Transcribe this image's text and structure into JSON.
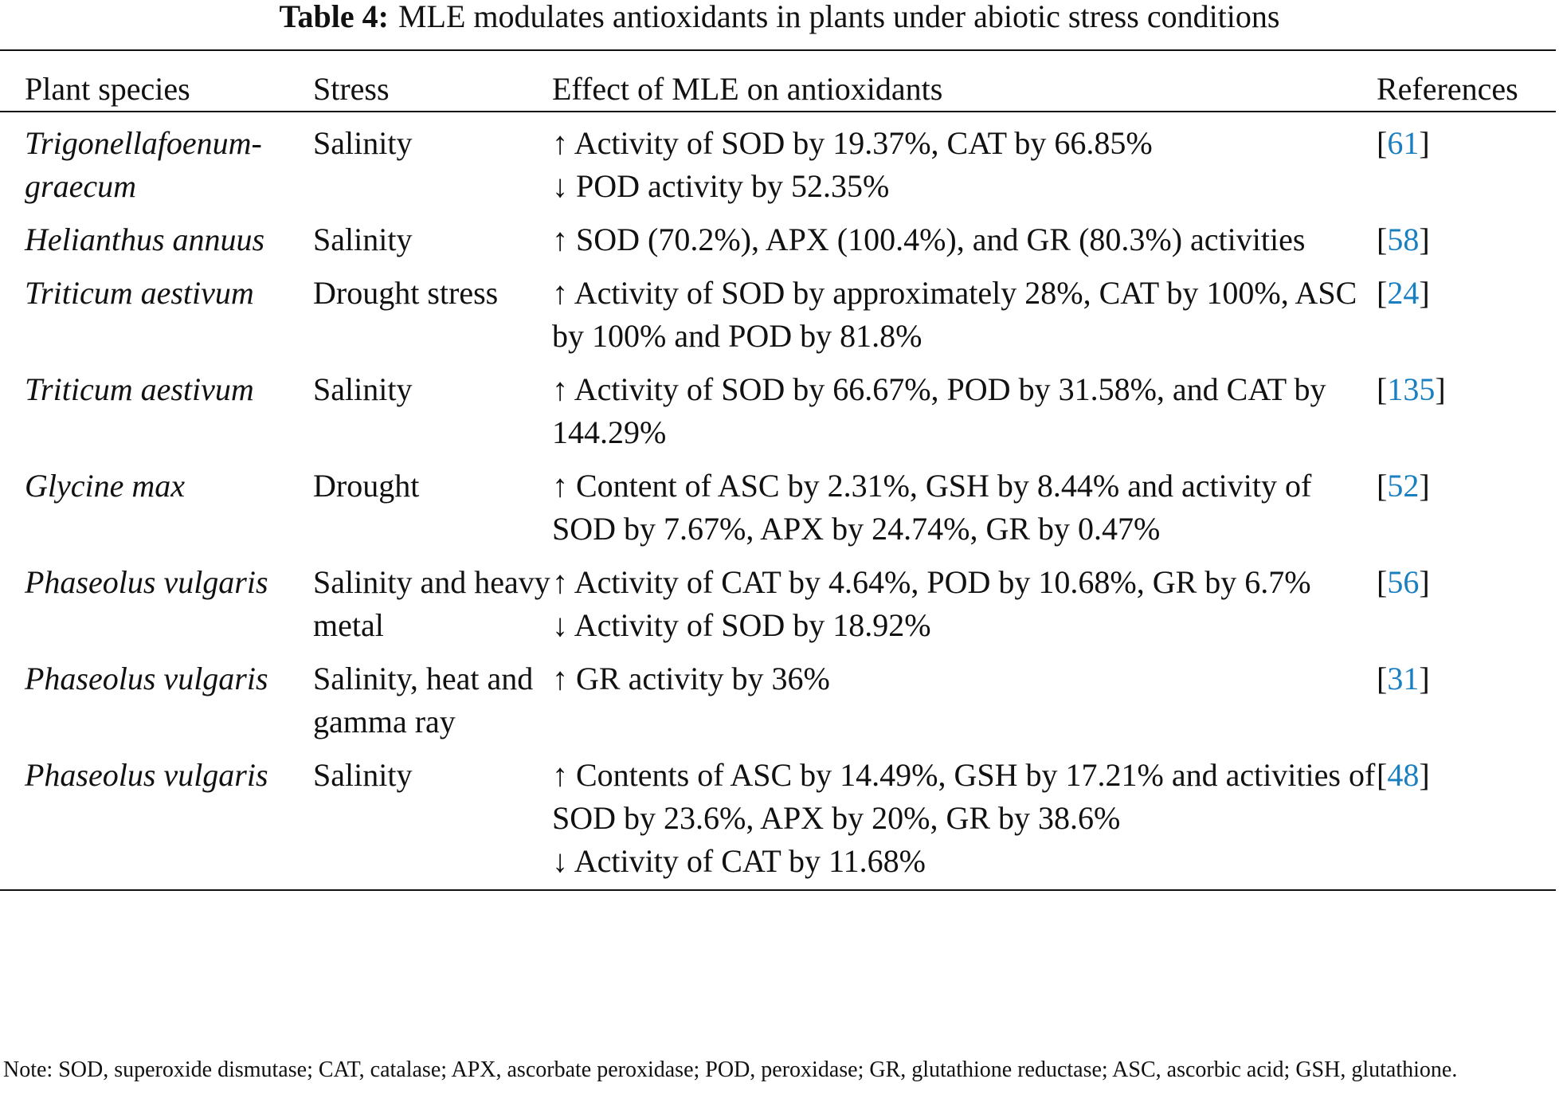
{
  "title": {
    "label": "Table 4:",
    "text": "MLE modulates antioxidants in plants under abiotic stress conditions"
  },
  "table": {
    "header": [
      "Plant species",
      "Stress",
      "Effect of MLE on antioxidants",
      "References"
    ],
    "rows": [
      {
        "species": "Trigonellafoenum-graecum",
        "stress": "Salinity",
        "effects": [
          "↑ Activity of SOD by 19.37%, CAT by 66.85%",
          "↓ POD activity by 52.35%"
        ],
        "reference": [
          "[",
          "61",
          "]"
        ]
      },
      {
        "species": "Helianthus annuus",
        "stress": "Salinity",
        "effects": [
          "↑ SOD (70.2%), APX (100.4%), and GR (80.3%) activities"
        ],
        "reference": [
          "[",
          "58",
          "]"
        ]
      },
      {
        "species": "Triticum aestivum",
        "stress": "Drought stress",
        "effects": [
          "↑ Activity of SOD by approximately 28%, CAT by 100%, ASC by 100% and POD by 81.8%"
        ],
        "reference": [
          "[",
          "24",
          "]"
        ]
      },
      {
        "species": "Triticum aestivum",
        "stress": "Salinity",
        "effects": [
          "↑ Activity of SOD by 66.67%, POD by 31.58%, and CAT by 144.29%"
        ],
        "reference": [
          "[",
          "135",
          "]"
        ]
      },
      {
        "species": "Glycine max",
        "stress": "Drought",
        "effects": [
          "↑ Content of ASC by 2.31%, GSH by 8.44% and activity of SOD by 7.67%, APX by 24.74%, GR by 0.47%"
        ],
        "reference": [
          "[",
          "52",
          "]"
        ]
      },
      {
        "species": "Phaseolus vulgaris",
        "stress": "Salinity and heavy metal",
        "effects": [
          "↑ Activity of CAT by 4.64%, POD by 10.68%, GR by 6.7%",
          "↓ Activity of SOD by 18.92%"
        ],
        "reference": [
          "[",
          "56",
          "]"
        ]
      },
      {
        "species": "Phaseolus vulgaris",
        "stress": "Salinity, heat and gamma ray",
        "effects": [
          "↑ GR activity by 36%"
        ],
        "reference": [
          "[",
          "31",
          "]"
        ]
      },
      {
        "species": "Phaseolus vulgaris",
        "stress": "Salinity",
        "effects": [
          "↑ Contents of ASC by 14.49%, GSH by 17.21% and activities of SOD by 23.6%, APX by 20%, GR by 38.6%",
          "↓ Activity of CAT by 11.68%"
        ],
        "reference": [
          "[",
          "48",
          "]"
        ]
      }
    ]
  },
  "note": "Note: SOD, superoxide dismutase; CAT, catalase; APX, ascorbate peroxidase; POD, peroxidase; GR, glutathione reductase; ASC, ascorbic acid; GSH, glutathione."
}
